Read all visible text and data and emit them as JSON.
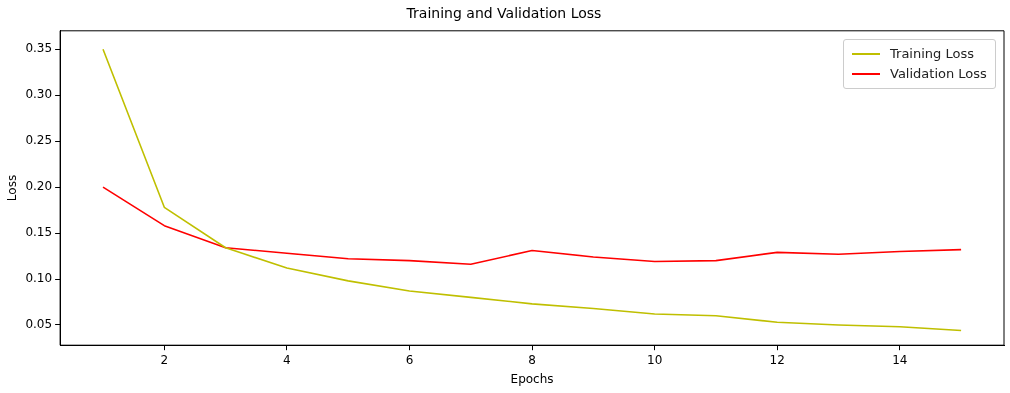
{
  "chart_data": {
    "type": "line",
    "title": "Training and Validation Loss",
    "xlabel": "Epochs",
    "ylabel": "Loss",
    "x": [
      1,
      2,
      3,
      4,
      5,
      6,
      7,
      8,
      9,
      10,
      11,
      12,
      13,
      14,
      15
    ],
    "series": [
      {
        "name": "Training Loss",
        "color": "#bfbf00",
        "values": [
          0.35,
          0.178,
          0.134,
          0.112,
          0.098,
          0.087,
          0.08,
          0.073,
          0.068,
          0.062,
          0.06,
          0.053,
          0.05,
          0.048,
          0.044
        ]
      },
      {
        "name": "Validation Loss",
        "color": "#ff0000",
        "values": [
          0.2,
          0.158,
          0.134,
          0.128,
          0.122,
          0.12,
          0.116,
          0.131,
          0.124,
          0.119,
          0.12,
          0.129,
          0.127,
          0.13,
          0.132
        ]
      }
    ],
    "xlim": [
      0.3,
      15.7
    ],
    "xticks": [
      2,
      4,
      6,
      8,
      10,
      12,
      14
    ],
    "ylim": [
      0.028,
      0.37
    ],
    "yticks": [
      {
        "value": 0.05,
        "label": "0.05"
      },
      {
        "value": 0.1,
        "label": "0.10"
      },
      {
        "value": 0.15,
        "label": "0.15"
      },
      {
        "value": 0.2,
        "label": "0.20"
      },
      {
        "value": 0.25,
        "label": "0.25"
      },
      {
        "value": 0.3,
        "label": "0.30"
      },
      {
        "value": 0.35,
        "label": "0.35"
      }
    ],
    "legend": "top right",
    "grid": false,
    "marker": "none",
    "line_style": "solid"
  }
}
